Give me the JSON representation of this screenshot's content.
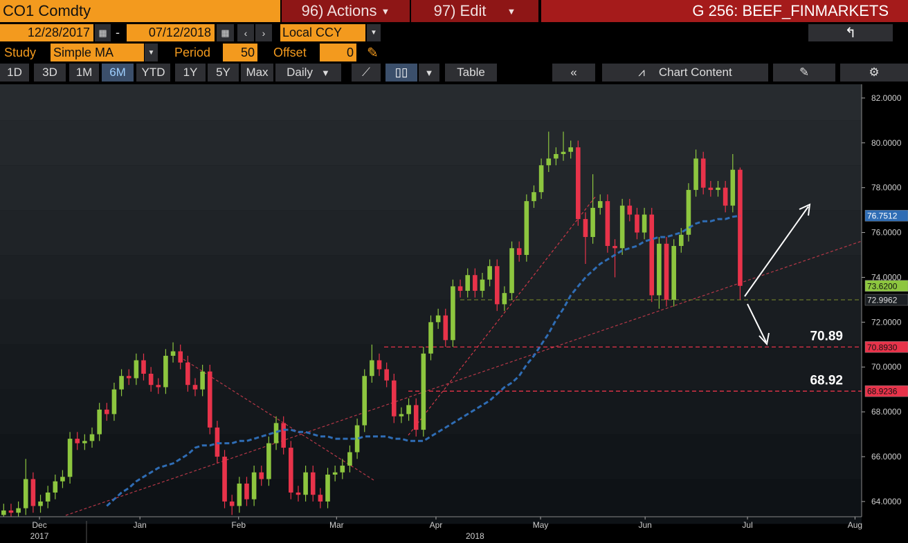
{
  "toolbar": {
    "security": "CO1 Comdty",
    "actions": "96) Actions",
    "edit": "97) Edit",
    "page_title": "G 256: BEEF_FINMARKETS",
    "start_date": "12/28/2017",
    "date_separator": "-",
    "end_date": "07/12/2018",
    "currency": "Local CCY",
    "study_label": "Study",
    "study": "Simple MA",
    "period_label": "Period",
    "period": 50,
    "offset_label": "Offset",
    "offset": 0,
    "ranges": [
      "1D",
      "3D",
      "1M",
      "6M",
      "YTD",
      "1Y",
      "5Y",
      "Max"
    ],
    "active_range": "6M",
    "frequency": "Daily",
    "table": "Table",
    "chart_content": "Chart Content"
  },
  "chart_data": {
    "type": "candlestick",
    "up_color": "#8dc63f",
    "down_color": "#e8334a",
    "ma_color": "#2f6db5",
    "xlim": [
      -0.5,
      116.5
    ],
    "xticks": [
      {
        "value": 4.86,
        "label": "Dec"
      },
      {
        "value": 18.5,
        "label": "Jan"
      },
      {
        "value": 31.9,
        "label": "Feb"
      },
      {
        "value": 45.2,
        "label": "Mar"
      },
      {
        "value": 58.7,
        "label": "Apr"
      },
      {
        "value": 72.9,
        "label": "May"
      },
      {
        "value": 87.1,
        "label": "Jun"
      },
      {
        "value": 101,
        "label": "Jul"
      },
      {
        "value": 115.6,
        "label": "Aug"
      }
    ],
    "year_labels": [
      {
        "value": 4.86,
        "label": "2017"
      },
      {
        "value": 64,
        "label": "2018"
      }
    ],
    "ylim": [
      63.32,
      82.52
    ],
    "yticks": [
      {
        "value": 64,
        "label": "64.0000"
      },
      {
        "value": 66,
        "label": "66.0000"
      },
      {
        "value": 68,
        "label": "68.0000"
      },
      {
        "value": 70,
        "label": "70.0000"
      },
      {
        "value": 72,
        "label": "72.0000"
      },
      {
        "value": 74,
        "label": "74.0000"
      },
      {
        "value": 76,
        "label": "76.0000"
      },
      {
        "value": 78,
        "label": "78.0000"
      },
      {
        "value": 80,
        "label": "80.0000"
      },
      {
        "value": 82,
        "label": "82.0000"
      }
    ],
    "candles": [
      [
        63.4,
        63.9,
        63.1,
        63.6
      ],
      [
        63.6,
        63.9,
        63.2,
        63.5
      ],
      [
        63.5,
        64.0,
        63.2,
        63.7
      ],
      [
        63.7,
        65.9,
        63.4,
        65.0
      ],
      [
        65.0,
        65.3,
        63.5,
        63.8
      ],
      [
        63.8,
        64.3,
        63.5,
        64.0
      ],
      [
        64.0,
        64.7,
        63.7,
        64.4
      ],
      [
        64.4,
        65.2,
        64.1,
        64.9
      ],
      [
        64.9,
        65.4,
        64.6,
        65.1
      ],
      [
        65.1,
        67.1,
        64.8,
        66.8
      ],
      [
        66.8,
        67.1,
        66.3,
        66.6
      ],
      [
        66.6,
        67.0,
        66.3,
        66.7
      ],
      [
        66.7,
        67.3,
        66.4,
        67.0
      ],
      [
        67.0,
        68.4,
        66.7,
        68.1
      ],
      [
        68.1,
        68.4,
        67.6,
        67.9
      ],
      [
        67.9,
        69.3,
        67.6,
        69.0
      ],
      [
        69.0,
        69.9,
        68.7,
        69.6
      ],
      [
        69.6,
        69.9,
        69.2,
        69.5
      ],
      [
        69.5,
        70.6,
        69.2,
        70.3
      ],
      [
        70.3,
        70.6,
        69.4,
        69.7
      ],
      [
        69.7,
        70.0,
        68.9,
        69.2
      ],
      [
        69.2,
        69.5,
        68.8,
        69.1
      ],
      [
        69.1,
        70.8,
        68.8,
        70.5
      ],
      [
        70.5,
        71.1,
        70.2,
        70.7
      ],
      [
        70.7,
        71.0,
        69.9,
        70.2
      ],
      [
        70.2,
        70.5,
        68.9,
        69.2
      ],
      [
        69.2,
        69.5,
        68.7,
        69.0
      ],
      [
        69.0,
        70.1,
        68.7,
        69.8
      ],
      [
        69.8,
        70.1,
        67.0,
        67.3
      ],
      [
        67.3,
        67.6,
        65.7,
        66.0
      ],
      [
        66.0,
        66.3,
        63.7,
        64.0
      ],
      [
        64.0,
        64.3,
        63.4,
        63.8
      ],
      [
        63.8,
        65.1,
        63.5,
        64.8
      ],
      [
        64.8,
        65.1,
        63.8,
        64.1
      ],
      [
        64.1,
        65.6,
        63.8,
        65.3
      ],
      [
        65.3,
        65.6,
        64.7,
        65.0
      ],
      [
        65.0,
        66.9,
        64.7,
        66.6
      ],
      [
        66.6,
        67.8,
        66.3,
        67.5
      ],
      [
        67.5,
        67.8,
        66.1,
        66.4
      ],
      [
        66.4,
        66.7,
        64.1,
        64.4
      ],
      [
        64.4,
        64.7,
        64.0,
        64.3
      ],
      [
        64.3,
        65.6,
        64.0,
        65.3
      ],
      [
        65.3,
        65.6,
        64.0,
        64.3
      ],
      [
        64.3,
        64.6,
        63.7,
        64.0
      ],
      [
        64.0,
        65.5,
        63.7,
        65.2
      ],
      [
        65.2,
        65.6,
        64.9,
        65.3
      ],
      [
        65.3,
        65.9,
        65.0,
        65.6
      ],
      [
        65.6,
        66.5,
        65.3,
        66.2
      ],
      [
        66.2,
        67.7,
        65.9,
        67.4
      ],
      [
        67.4,
        69.9,
        67.1,
        69.6
      ],
      [
        69.6,
        71.0,
        69.3,
        70.3
      ],
      [
        70.3,
        70.6,
        69.6,
        69.9
      ],
      [
        69.9,
        70.2,
        69.1,
        69.4
      ],
      [
        69.4,
        69.7,
        67.5,
        67.8
      ],
      [
        67.8,
        68.2,
        67.5,
        67.9
      ],
      [
        67.9,
        68.6,
        67.6,
        68.3
      ],
      [
        68.3,
        68.6,
        66.9,
        67.2
      ],
      [
        67.2,
        70.9,
        66.9,
        70.6
      ],
      [
        70.6,
        72.3,
        70.3,
        72.0
      ],
      [
        72.0,
        72.6,
        71.7,
        72.3
      ],
      [
        72.3,
        72.6,
        70.9,
        71.2
      ],
      [
        71.2,
        73.9,
        70.9,
        73.6
      ],
      [
        73.6,
        73.9,
        73.1,
        73.4
      ],
      [
        73.4,
        74.4,
        73.1,
        74.1
      ],
      [
        74.1,
        74.4,
        73.1,
        73.4
      ],
      [
        73.4,
        74.2,
        73.1,
        73.9
      ],
      [
        73.9,
        74.8,
        73.6,
        74.5
      ],
      [
        74.5,
        74.8,
        72.5,
        72.8
      ],
      [
        72.8,
        73.6,
        72.5,
        73.3
      ],
      [
        73.3,
        75.6,
        73.0,
        75.3
      ],
      [
        75.3,
        75.6,
        74.7,
        75.0
      ],
      [
        75.0,
        77.7,
        74.7,
        77.4
      ],
      [
        77.4,
        78.1,
        77.1,
        77.8
      ],
      [
        77.8,
        79.3,
        77.5,
        79.0
      ],
      [
        79.0,
        80.5,
        78.7,
        79.3
      ],
      [
        79.3,
        79.8,
        79.0,
        79.5
      ],
      [
        79.5,
        80.5,
        79.2,
        79.6
      ],
      [
        79.6,
        80.1,
        79.3,
        79.8
      ],
      [
        79.8,
        80.1,
        76.3,
        76.6
      ],
      [
        76.6,
        76.9,
        74.6,
        75.8
      ],
      [
        75.8,
        78.6,
        75.5,
        77.1
      ],
      [
        77.1,
        77.7,
        76.8,
        77.4
      ],
      [
        77.4,
        77.7,
        75.1,
        75.4
      ],
      [
        75.4,
        75.7,
        74.0,
        75.3
      ],
      [
        75.3,
        77.5,
        75.0,
        77.2
      ],
      [
        77.2,
        77.5,
        76.5,
        76.8
      ],
      [
        76.8,
        77.1,
        75.7,
        76.0
      ],
      [
        76.0,
        77.1,
        75.7,
        76.8
      ],
      [
        76.8,
        77.1,
        72.9,
        73.2
      ],
      [
        73.2,
        75.8,
        72.6,
        75.5
      ],
      [
        75.5,
        75.8,
        72.7,
        73.0
      ],
      [
        73.0,
        75.7,
        72.7,
        75.4
      ],
      [
        75.4,
        76.2,
        75.1,
        75.9
      ],
      [
        75.9,
        78.2,
        75.6,
        77.9
      ],
      [
        77.9,
        79.7,
        77.6,
        79.3
      ],
      [
        79.3,
        79.6,
        77.7,
        78.0
      ],
      [
        78.0,
        78.3,
        77.6,
        77.9
      ],
      [
        77.9,
        78.3,
        77.6,
        78.0
      ],
      [
        78.0,
        78.3,
        76.9,
        77.2
      ],
      [
        77.2,
        79.5,
        76.9,
        78.8
      ],
      [
        78.8,
        78.9,
        73.0,
        73.62
      ]
    ],
    "ma": [
      null,
      null,
      null,
      null,
      null,
      null,
      null,
      null,
      null,
      null,
      null,
      null,
      null,
      null,
      63.8,
      64.1,
      64.4,
      64.6,
      64.9,
      65.1,
      65.3,
      65.5,
      65.6,
      65.7,
      65.9,
      66.1,
      66.4,
      66.5,
      66.5,
      66.6,
      66.6,
      66.6,
      66.7,
      66.7,
      66.8,
      66.9,
      67.0,
      67.1,
      67.2,
      67.2,
      67.1,
      67.1,
      67.0,
      66.9,
      66.9,
      66.8,
      66.8,
      66.8,
      66.8,
      66.9,
      66.9,
      66.9,
      66.9,
      66.8,
      66.8,
      66.7,
      66.7,
      66.7,
      66.9,
      67.1,
      67.3,
      67.5,
      67.7,
      67.9,
      68.1,
      68.3,
      68.5,
      68.8,
      69.1,
      69.3,
      69.6,
      70.1,
      70.5,
      71.0,
      71.5,
      72.1,
      72.6,
      73.2,
      73.6,
      74.0,
      74.3,
      74.6,
      74.8,
      75.0,
      75.2,
      75.3,
      75.4,
      75.6,
      75.7,
      75.8,
      75.8,
      75.9,
      76.0,
      76.2,
      76.4,
      76.5,
      76.5,
      76.6,
      76.6,
      76.7,
      76.75
    ],
    "price_labels": [
      {
        "value": 76.7512,
        "color": "#2f6db5"
      },
      {
        "value": 73.62,
        "label": "73.6200",
        "color": "#8dc63f"
      },
      {
        "value": 72.9962,
        "color": "#1c2024"
      },
      {
        "value": 70.893,
        "label": "70.8930",
        "color": "#e8334a"
      },
      {
        "value": 68.9236,
        "color": "#e8334a"
      }
    ],
    "annotations": [
      70.89,
      68.92
    ]
  }
}
